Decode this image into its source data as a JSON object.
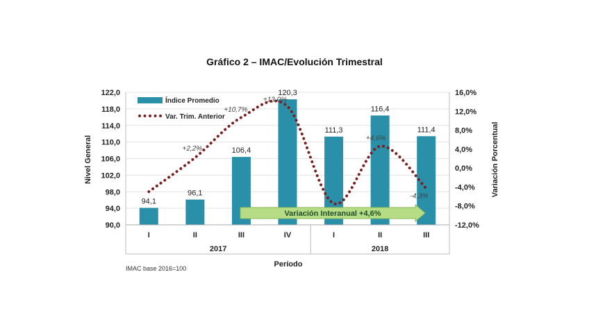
{
  "chart_data": {
    "type": "bar",
    "title": "Gráfico 2 – IMAC/Evolución Trimestral",
    "xlabel": "Período",
    "ylabel": "Nivel General",
    "y2label": "Variación Porcentual",
    "ylim": [
      90,
      122
    ],
    "yticks": [
      "90,0",
      "94,0",
      "98,0",
      "102,0",
      "106,0",
      "110,0",
      "114,0",
      "118,0",
      "122,0"
    ],
    "y2lim": [
      -12,
      16
    ],
    "y2ticks": [
      "-12,0%",
      "-8,0%",
      "-4,0%",
      "0,0%",
      "4,0%",
      "8,0%",
      "12,0%",
      "16,0%"
    ],
    "categories": [
      "I",
      "II",
      "III",
      "IV",
      "I",
      "II",
      "III"
    ],
    "groups": [
      {
        "label": "2017",
        "count": 4
      },
      {
        "label": "2018",
        "count": 3
      }
    ],
    "series": [
      {
        "name": "Índice Promedio",
        "type": "bar",
        "values": [
          94.1,
          96.1,
          106.4,
          120.3,
          111.3,
          116.4,
          111.4
        ],
        "labels": [
          "94,1",
          "96,1",
          "106,4",
          "120,3",
          "111,3",
          "116,4",
          "111,4"
        ],
        "color": "#2a8fa8"
      },
      {
        "name": "Var. Trim. Anterior",
        "type": "line",
        "values": [
          -5.0,
          2.2,
          10.7,
          13.0,
          -7.5,
          4.6,
          -4.3
        ],
        "labels": [
          "",
          "+2,2%",
          "+10,7%",
          "+13,0%",
          "-7,5%",
          "+4,6%",
          "-4,3%"
        ],
        "color": "#7a1f1f"
      }
    ],
    "annotation": "Variación Interanual +4,6%",
    "note": "IMAC base 2016=100",
    "legend": "top-left"
  }
}
